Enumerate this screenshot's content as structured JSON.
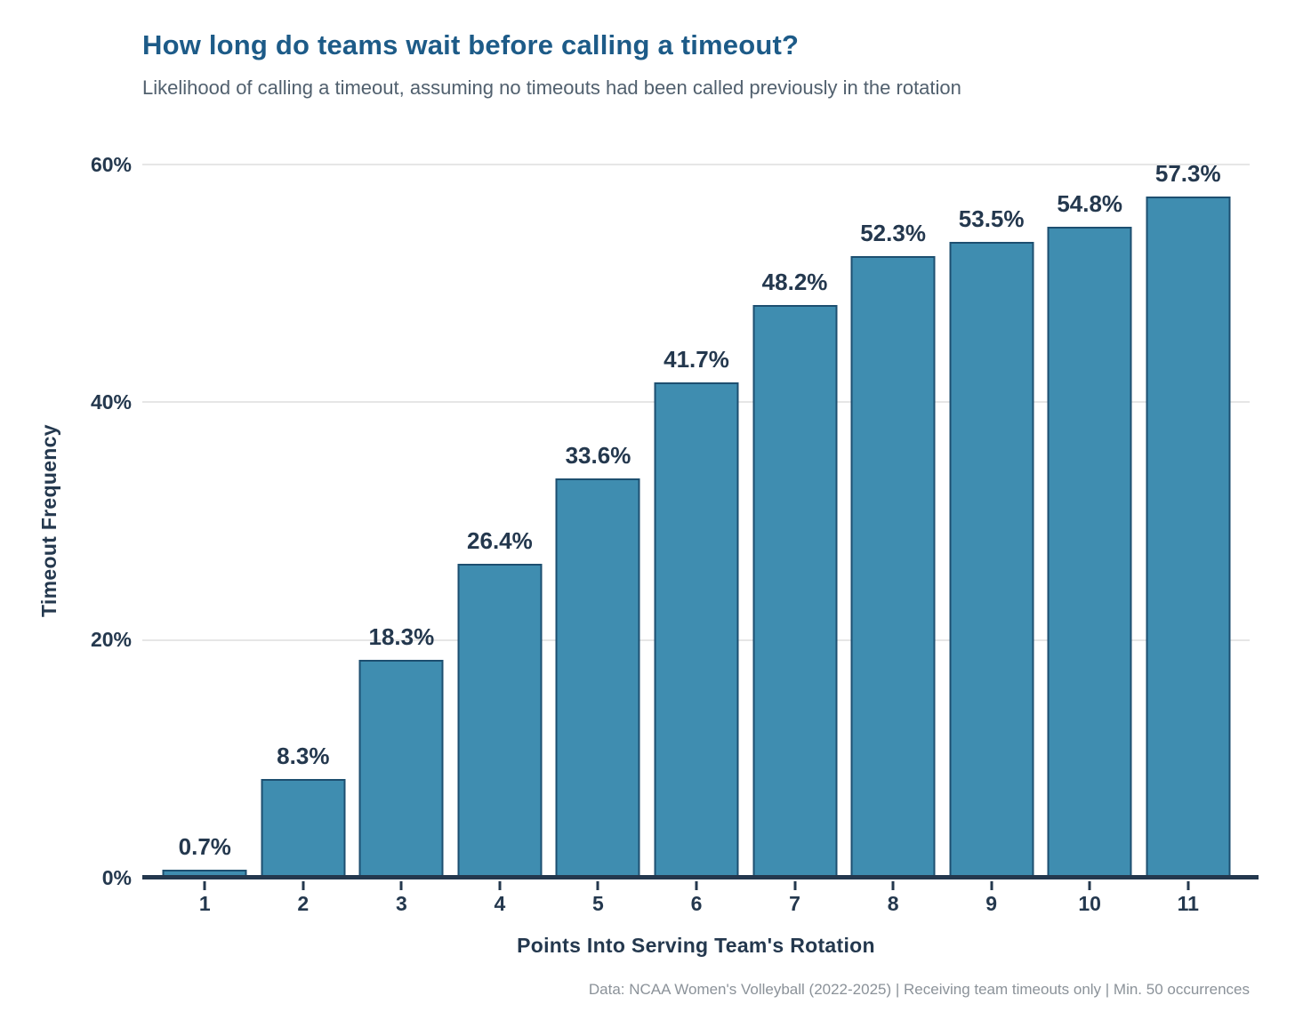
{
  "title": "How long do teams wait before calling a timeout?",
  "subtitle": "Likelihood of calling a timeout, assuming no timeouts had been called previously in the rotation",
  "footer": "Data: NCAA Women's Volleyball (2022-2025) | Receiving team timeouts only | Min. 50 occurrences",
  "colors": {
    "title": "#1d5b88",
    "subtitle": "#51606e",
    "axis_text": "#24384e",
    "bar_fill": "#3f8db0",
    "bar_edge": "#1d4f70",
    "gridline": "#e6e6e6",
    "footer_text": "#8b9299"
  },
  "chart_data": {
    "type": "bar",
    "title": "How long do teams wait before calling a timeout?",
    "subtitle": "Likelihood of calling a timeout, assuming no timeouts had been called previously in the rotation",
    "categories": [
      "1",
      "2",
      "3",
      "4",
      "5",
      "6",
      "7",
      "8",
      "9",
      "10",
      "11"
    ],
    "values": [
      0.7,
      8.3,
      18.3,
      26.4,
      33.6,
      41.7,
      48.2,
      52.3,
      53.5,
      54.8,
      57.3
    ],
    "value_labels": [
      "0.7%",
      "8.3%",
      "18.3%",
      "26.4%",
      "33.6%",
      "41.7%",
      "48.2%",
      "52.3%",
      "53.5%",
      "54.8%",
      "57.3%"
    ],
    "xlabel": "Points Into Serving Team's Rotation",
    "ylabel": "Timeout Frequency",
    "ylim": [
      0,
      60
    ],
    "yticks": [
      {
        "value": 0,
        "label": "0%"
      },
      {
        "value": 20,
        "label": "20%"
      },
      {
        "value": 40,
        "label": "40%"
      },
      {
        "value": 60,
        "label": "60%"
      }
    ],
    "grid": "horizontal",
    "legend": "none"
  }
}
